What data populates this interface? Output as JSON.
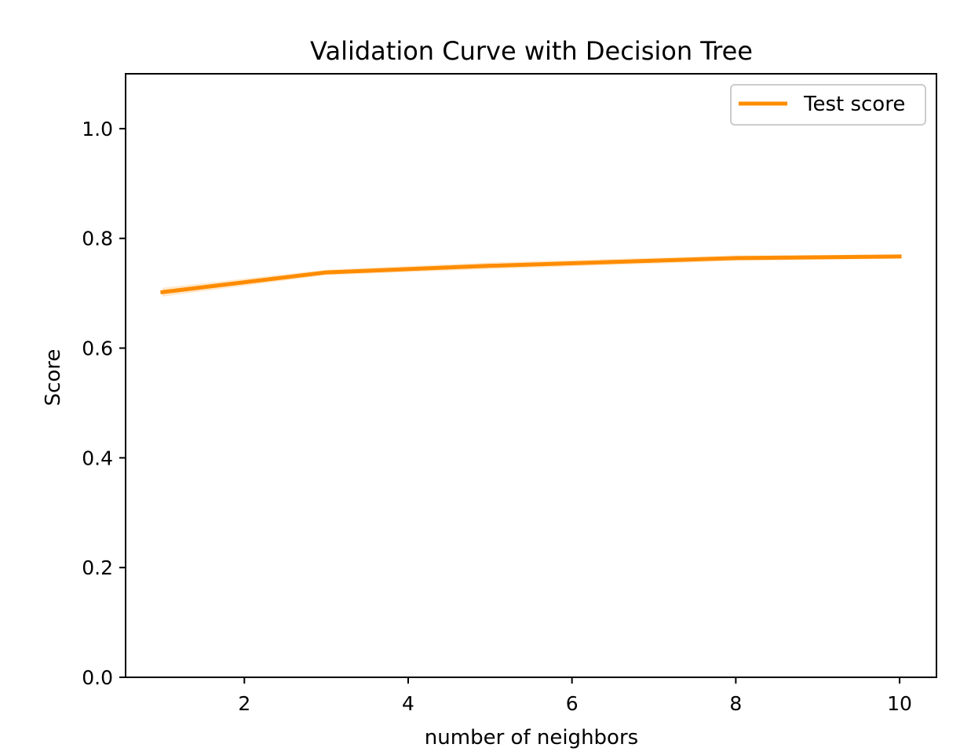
{
  "chart_data": {
    "type": "line",
    "title": "Validation Curve with Decision Tree",
    "xlabel": "number of neighbors",
    "ylabel": "Score",
    "xlim": [
      0.55,
      10.45
    ],
    "ylim": [
      0.0,
      1.1
    ],
    "xticks": [
      2,
      4,
      6,
      8,
      10
    ],
    "xtick_labels": [
      "2",
      "4",
      "6",
      "8",
      "10"
    ],
    "yticks": [
      0.0,
      0.2,
      0.4,
      0.6,
      0.8,
      1.0
    ],
    "ytick_labels": [
      "0.0",
      "0.2",
      "0.4",
      "0.6",
      "0.8",
      "1.0"
    ],
    "grid": false,
    "legend_position": "top-right",
    "series": [
      {
        "name": "Test score",
        "color": "#ff8c00",
        "x": [
          1,
          3,
          5,
          8,
          10
        ],
        "values": [
          0.702,
          0.738,
          0.75,
          0.764,
          0.767
        ],
        "band_lower": [
          0.694,
          0.733,
          0.744,
          0.759,
          0.763
        ],
        "band_upper": [
          0.71,
          0.743,
          0.756,
          0.769,
          0.771
        ]
      }
    ]
  }
}
